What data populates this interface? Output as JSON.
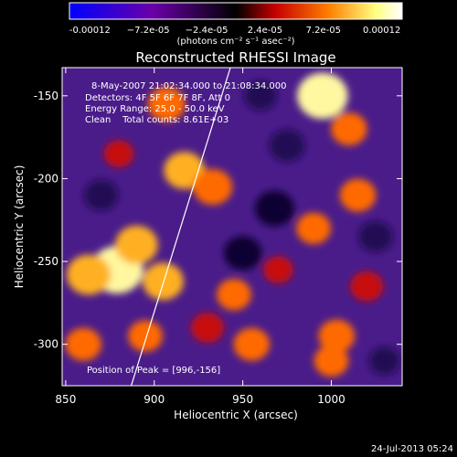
{
  "colorbar": {
    "tick_labels": [
      "-0.00012",
      "−7.2e-05",
      "−2.4e-05",
      "2.4e-05",
      "7.2e-05",
      "0.00012"
    ],
    "range": [
      -0.00012,
      0.00012
    ],
    "units_label": "(photons cm⁻² s⁻¹ asec⁻²)",
    "colors": [
      "#0000ff",
      "#6a00a8",
      "#000000",
      "#c80000",
      "#ff8000",
      "#ffff80",
      "#ffffff"
    ]
  },
  "chart_data": {
    "type": "heatmap",
    "title": "Reconstructed RHESSI Image",
    "xlabel": "Heliocentric X (arcsec)",
    "ylabel": "Heliocentric Y (arcsec)",
    "xlim": [
      848,
      1040
    ],
    "ylim": [
      -325,
      -133
    ],
    "x_ticks": [
      850,
      900,
      950,
      1000
    ],
    "y_ticks": [
      -150,
      -200,
      -250,
      -300
    ],
    "annotations": [
      "8-May-2007 21:02:34.000 to 21:08:34.000",
      "Detectors: 4F 5F 6F 7F 8F, Att 0",
      "Energy Range: 25.0 - 50.0 keV",
      "Clean    Total counts: 8.61E+03"
    ],
    "peak_label": "Position of Peak = [996,-156]",
    "peak": [
      996,
      -156
    ],
    "limb_line": {
      "x": [
        887,
        943
      ],
      "y": [
        -325,
        -133
      ]
    },
    "hotspots": [
      {
        "x": 879,
        "y": -255,
        "value": 1.0
      },
      {
        "x": 863,
        "y": -258,
        "value": 0.75
      },
      {
        "x": 890,
        "y": -240,
        "value": 0.7
      },
      {
        "x": 905,
        "y": -262,
        "value": 0.65
      },
      {
        "x": 860,
        "y": -300,
        "value": 0.5
      },
      {
        "x": 895,
        "y": -295,
        "value": 0.45
      },
      {
        "x": 880,
        "y": -185,
        "value": 0.3
      },
      {
        "x": 917,
        "y": -195,
        "value": 0.65
      },
      {
        "x": 933,
        "y": -205,
        "value": 0.6
      },
      {
        "x": 907,
        "y": -155,
        "value": 0.55
      },
      {
        "x": 945,
        "y": -270,
        "value": 0.45
      },
      {
        "x": 955,
        "y": -300,
        "value": 0.5
      },
      {
        "x": 930,
        "y": -290,
        "value": 0.4
      },
      {
        "x": 995,
        "y": -150,
        "value": 0.95
      },
      {
        "x": 1010,
        "y": -170,
        "value": 0.5
      },
      {
        "x": 1015,
        "y": -210,
        "value": 0.5
      },
      {
        "x": 990,
        "y": -230,
        "value": 0.45
      },
      {
        "x": 1003,
        "y": -295,
        "value": 0.5
      },
      {
        "x": 1020,
        "y": -265,
        "value": 0.4
      },
      {
        "x": 1000,
        "y": -310,
        "value": 0.45
      },
      {
        "x": 970,
        "y": -255,
        "value": 0.3
      },
      {
        "x": 968,
        "y": -218,
        "value": -0.6
      },
      {
        "x": 950,
        "y": -245,
        "value": -0.55
      },
      {
        "x": 975,
        "y": -180,
        "value": -0.5
      },
      {
        "x": 1025,
        "y": -235,
        "value": -0.45
      },
      {
        "x": 870,
        "y": -210,
        "value": -0.45
      },
      {
        "x": 960,
        "y": -150,
        "value": -0.4
      },
      {
        "x": 1030,
        "y": -310,
        "value": -0.35
      }
    ]
  },
  "footer": {
    "date": "24-Jul-2013 05:24"
  }
}
